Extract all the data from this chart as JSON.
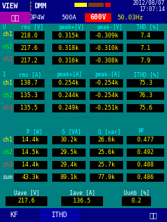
{
  "bg_color": "#008080",
  "black": "#000000",
  "white": "#ffffff",
  "yellow": "#ffff00",
  "cyan": "#00ffff",
  "green": "#00ff00",
  "red": "#ff0000",
  "dark_blue": "#000080",
  "top_bar": {
    "view_bg": "#000080",
    "view_text": "VIEW",
    "dmm_text": "DMM",
    "date": "2012/08/07",
    "time": "17:07:14",
    "small_rect_yellow": "#ffff00",
    "small_rect_brown": "#804000",
    "small_rect_red": "#ff0000"
  },
  "second_bar": {
    "label_bg": "#aa00aa",
    "label_text": "分析",
    "mode": "3P4W",
    "current": "500A",
    "voltage_bg": "#ff0000",
    "voltage_text": "600V",
    "freq_text": "50.03Hz",
    "freq_color": "#ffff00"
  },
  "voltage_table": {
    "header": [
      "U",
      "rms [V]",
      "peak+[V]",
      "peak-[V]",
      "THD [%]"
    ],
    "rows": [
      {
        "ch": "ch1",
        "ch_color": "#ffff00",
        "rms": "218.0",
        "peak_pos": "0.315k",
        "peak_neg": "-0.309k",
        "thd": "7.4"
      },
      {
        "ch": "ch2",
        "ch_color": "#00ff00",
        "rms": "217.6",
        "peak_pos": "0.318k",
        "peak_neg": "-0.310k",
        "thd": "7.1"
      },
      {
        "ch": "ch3",
        "ch_color": "#ff4444",
        "rms": "217.2",
        "peak_pos": "0.316k",
        "peak_neg": "-0.308k",
        "thd": "7.9"
      }
    ]
  },
  "current_table": {
    "header": [
      "I",
      "rms [A]",
      "peak+[A]",
      "peak-[A]",
      "ITHD [%]"
    ],
    "rows": [
      {
        "ch": "ch1",
        "ch_color": "#ffff00",
        "rms": "138.7",
        "peak_pos": "0.254k",
        "peak_neg": "-0.254k",
        "thd": "75.3"
      },
      {
        "ch": "ch2",
        "ch_color": "#00ff00",
        "rms": "135.3",
        "peak_pos": "0.244k",
        "peak_neg": "-0.254k",
        "thd": "76.3"
      },
      {
        "ch": "ch3",
        "ch_color": "#ff4444",
        "rms": "135.5",
        "peak_pos": "0.249k",
        "peak_neg": "-0.251k",
        "thd": "75.6"
      }
    ]
  },
  "power_table": {
    "header": [
      "",
      "P [W]",
      "S [VA]",
      "Q [var]",
      "PF"
    ],
    "rows": [
      {
        "ch": "ch1",
        "ch_color": "#ffff00",
        "p": "14.4k",
        "s": "30.2k",
        "q": "26.6k",
        "pf": "0.477"
      },
      {
        "ch": "ch2",
        "ch_color": "#00ff00",
        "p": "14.5k",
        "s": "29.5k",
        "q": "25.6k",
        "pf": "0.492"
      },
      {
        "ch": "ch3",
        "ch_color": "#ff4444",
        "p": "14.4k",
        "s": "29.4k",
        "q": "25.7k",
        "pf": "0.488"
      },
      {
        "ch": "sum",
        "ch_color": "#ffffff",
        "p": "43.3k",
        "s": "89.1k",
        "q": "77.9k",
        "pf": "0.486"
      }
    ]
  },
  "bottom_summary": {
    "headers": [
      "Uave [V]",
      "Iave [A]",
      "Uunb [%]"
    ],
    "values": [
      "217.6",
      "136.5",
      "0.2"
    ]
  },
  "footer": {
    "kf_text": "KF",
    "ithd_text": "ITHD",
    "hold_text": "保持"
  }
}
